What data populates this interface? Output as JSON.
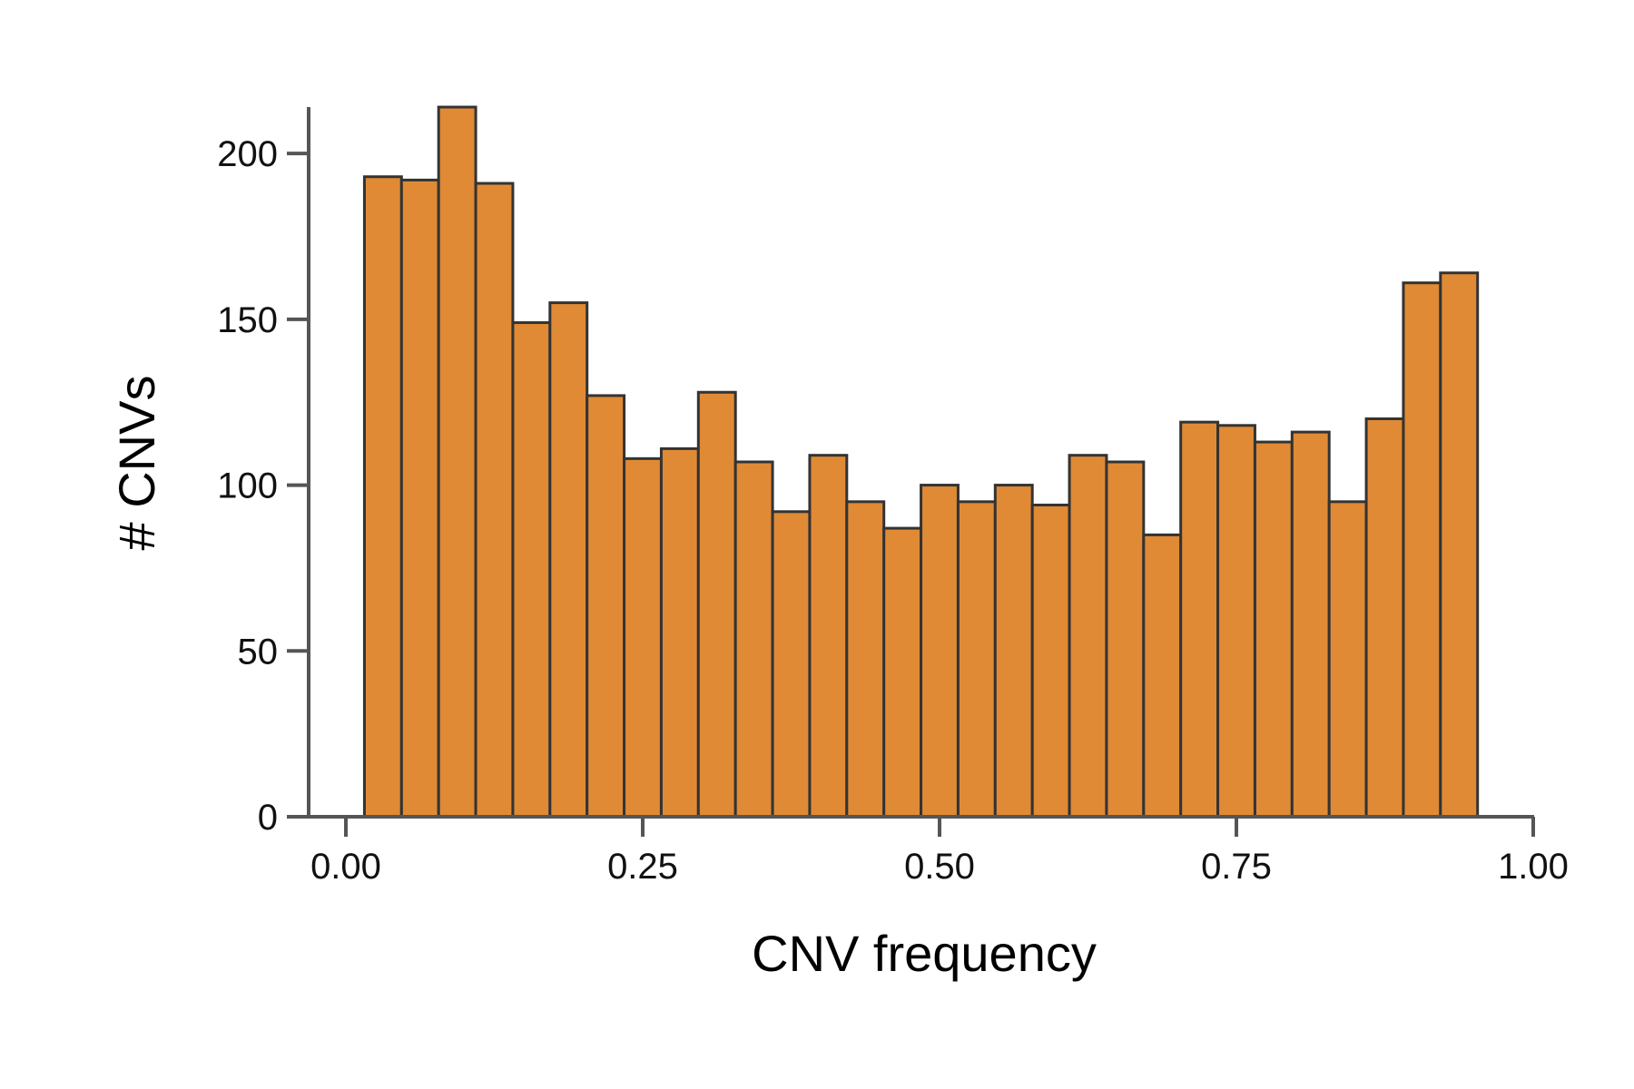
{
  "chart_data": {
    "type": "bar",
    "xlabel": "CNV frequency",
    "ylabel": "# CNVs",
    "xlim": [
      -0.03,
      1.0
    ],
    "ylim": [
      0,
      214
    ],
    "xticks": [
      0.0,
      0.25,
      0.5,
      0.75,
      1.0
    ],
    "xtick_labels": [
      "0.00",
      "0.25",
      "0.50",
      "0.75",
      "1.00"
    ],
    "yticks": [
      0,
      50,
      100,
      150,
      200
    ],
    "ytick_labels": [
      "0",
      "50",
      "100",
      "150",
      "200"
    ],
    "bin_width": 0.03125,
    "bin_starts": [
      0.015625,
      0.046875,
      0.078125,
      0.109375,
      0.140625,
      0.171875,
      0.203125,
      0.234375,
      0.265625,
      0.296875,
      0.328125,
      0.359375,
      0.390625,
      0.421875,
      0.453125,
      0.484375,
      0.515625,
      0.546875,
      0.578125,
      0.609375,
      0.640625,
      0.671875,
      0.703125,
      0.734375,
      0.765625,
      0.796875,
      0.828125,
      0.859375,
      0.890625,
      0.921875
    ],
    "values": [
      193,
      192,
      214,
      191,
      149,
      155,
      127,
      108,
      111,
      128,
      107,
      92,
      109,
      95,
      87,
      100,
      95,
      100,
      94,
      109,
      107,
      85,
      119,
      118,
      113,
      116,
      95,
      120,
      161,
      164
    ],
    "colors": {
      "fill": "#e08a35",
      "stroke": "#333333",
      "axis": "#555555"
    },
    "grid": false,
    "legend": "none"
  }
}
